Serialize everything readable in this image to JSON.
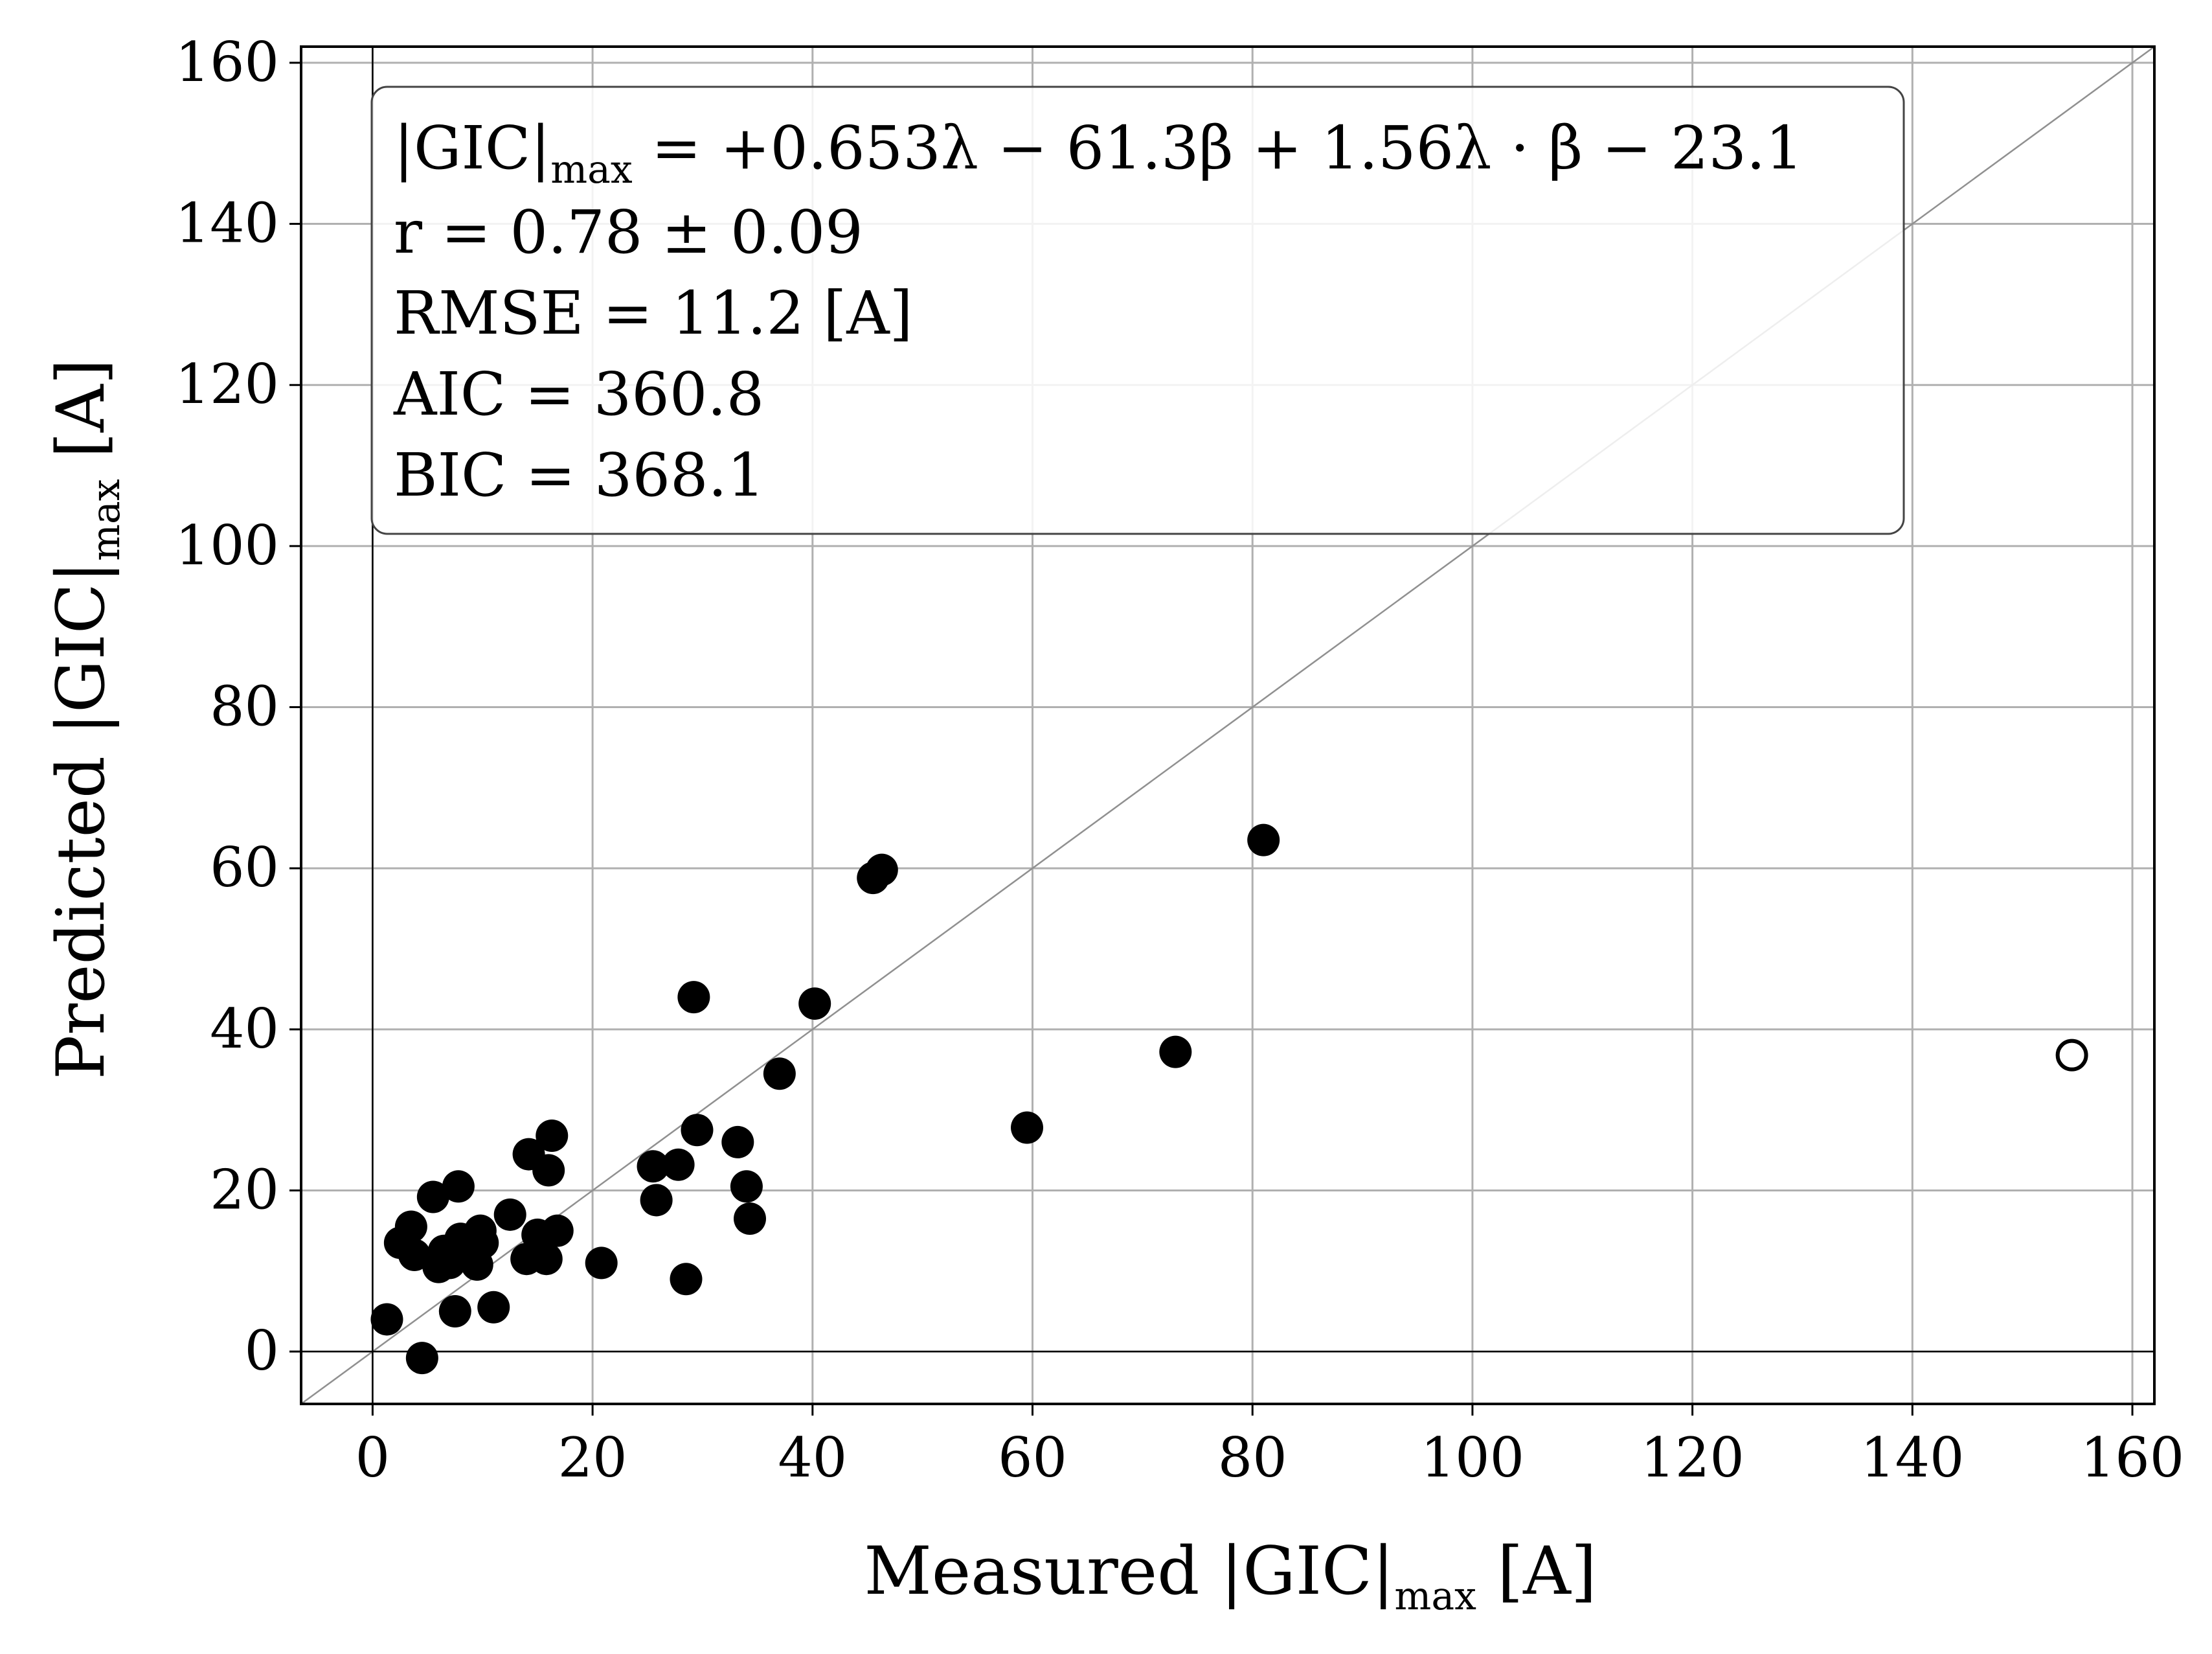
{
  "chart_data": {
    "type": "scatter",
    "title": "",
    "xlabel": {
      "main": "Measured |GIC|",
      "sub": "max",
      "unit": " [A]"
    },
    "ylabel": {
      "main": "Predicted |GIC|",
      "sub": "max",
      "unit": " [A]"
    },
    "xlim": [
      -6.5,
      162
    ],
    "ylim": [
      -6.5,
      162
    ],
    "xticks": [
      0,
      20,
      40,
      60,
      80,
      100,
      120,
      140,
      160
    ],
    "yticks": [
      0,
      20,
      40,
      60,
      80,
      100,
      120,
      140,
      160
    ],
    "grid": true,
    "reference_line": "y = x",
    "zero_lines": true,
    "annotation": {
      "formula": {
        "lhs": "|GIC|",
        "sub": "max",
        "rhs": " = +0.653λ − 61.3β + 1.56λ · β − 23.1"
      },
      "lines": [
        "r = 0.78 ± 0.09",
        "RMSE = 11.2 [A]",
        "AIC = 360.8",
        "BIC = 368.1"
      ],
      "placement": "top-left"
    },
    "series": [
      {
        "marker": "filled",
        "color": "#000000",
        "points": [
          [
            1.3,
            4.0
          ],
          [
            4.5,
            -0.8
          ],
          [
            2.5,
            13.5
          ],
          [
            3.5,
            15.5
          ],
          [
            3.8,
            12.0
          ],
          [
            5.5,
            19.2
          ],
          [
            6.0,
            10.5
          ],
          [
            6.5,
            12.5
          ],
          [
            7.0,
            11.0
          ],
          [
            7.5,
            5.0
          ],
          [
            7.8,
            20.5
          ],
          [
            8.0,
            14.0
          ],
          [
            8.5,
            12.0
          ],
          [
            9.5,
            10.8
          ],
          [
            9.8,
            15.0
          ],
          [
            10.0,
            13.5
          ],
          [
            11.0,
            5.5
          ],
          [
            12.5,
            17.0
          ],
          [
            14.0,
            11.5
          ],
          [
            14.2,
            24.5
          ],
          [
            15.0,
            14.5
          ],
          [
            15.8,
            11.5
          ],
          [
            16.0,
            22.5
          ],
          [
            16.3,
            26.8
          ],
          [
            16.8,
            15.0
          ],
          [
            20.8,
            11.0
          ],
          [
            25.5,
            23.0
          ],
          [
            25.8,
            18.8
          ],
          [
            27.8,
            23.2
          ],
          [
            28.5,
            9.0
          ],
          [
            29.2,
            44.0
          ],
          [
            29.5,
            27.5
          ],
          [
            33.2,
            26.0
          ],
          [
            34.0,
            20.5
          ],
          [
            34.3,
            16.5
          ],
          [
            37.0,
            34.5
          ],
          [
            40.2,
            43.2
          ],
          [
            45.5,
            58.8
          ],
          [
            46.3,
            59.8
          ],
          [
            59.5,
            27.8
          ],
          [
            73.0,
            37.2
          ],
          [
            81.0,
            63.5
          ]
        ]
      },
      {
        "marker": "hollow",
        "color": "#000000",
        "points": [
          [
            154.5,
            36.8
          ]
        ]
      }
    ]
  }
}
